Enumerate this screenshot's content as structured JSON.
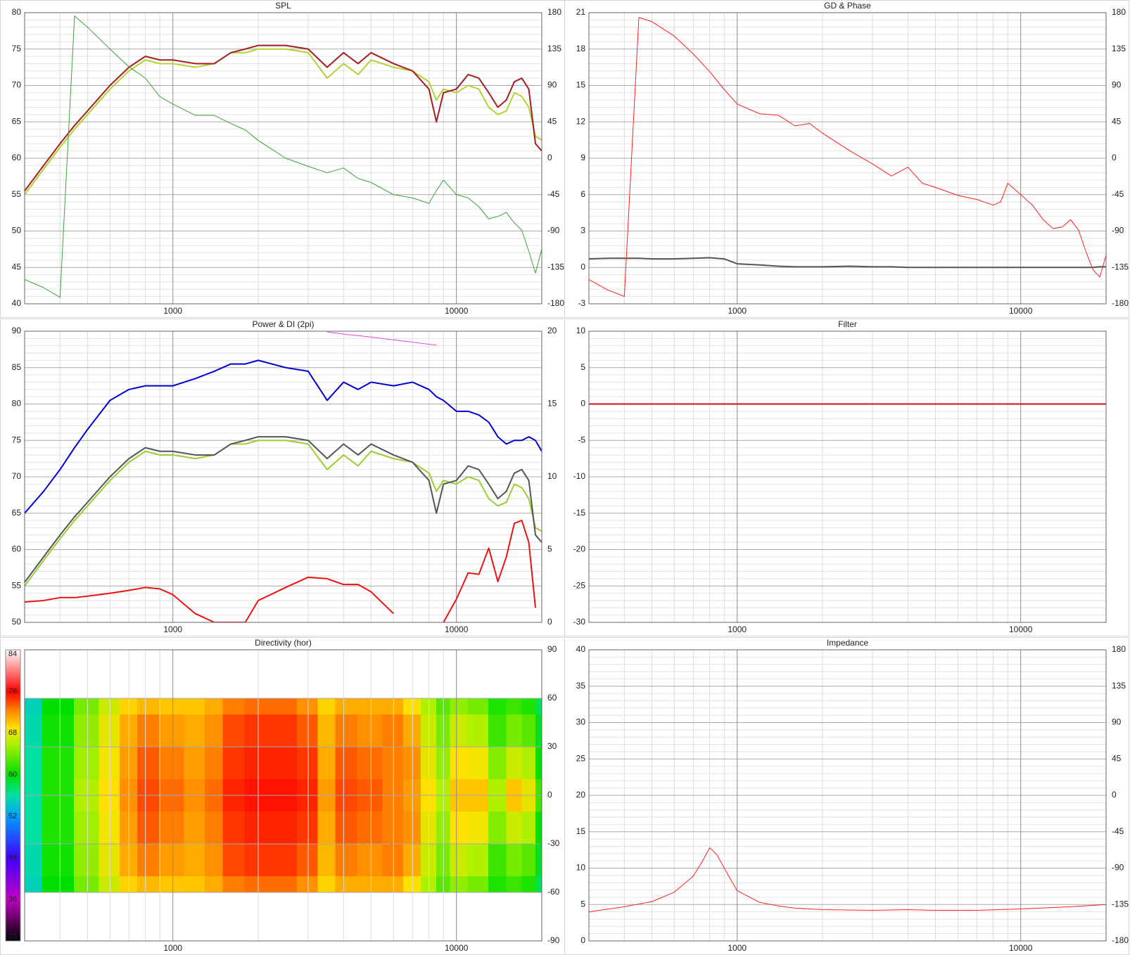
{
  "chart_data": [
    {
      "type": "line",
      "title": "SPL",
      "xscale": "log",
      "grid": true,
      "minor_grid": true,
      "x": [
        300,
        350,
        400,
        450,
        500,
        600,
        700,
        800,
        900,
        1000,
        1200,
        1400,
        1600,
        1800,
        2000,
        2500,
        3000,
        3500,
        4000,
        4500,
        5000,
        6000,
        7000,
        8000,
        8500,
        9000,
        10000,
        11000,
        12000,
        13000,
        14000,
        15000,
        16000,
        17000,
        18000,
        19000,
        20000
      ],
      "xlim": [
        300,
        20000
      ],
      "xticks": [
        1000,
        10000
      ],
      "ylim": [
        40,
        80
      ],
      "yticks": [
        40,
        45,
        50,
        55,
        60,
        65,
        70,
        75,
        80
      ],
      "y2lim": [
        -180,
        180
      ],
      "y2ticks": [
        -180,
        -135,
        -90,
        -45,
        0,
        45,
        90,
        135,
        180
      ],
      "series": [
        {
          "color": "#b3d233",
          "width": 2,
          "values": [
            55,
            58.5,
            61.5,
            64,
            66,
            69.5,
            72,
            73.5,
            73,
            73,
            72.5,
            73,
            74.5,
            74.5,
            75,
            75,
            74.5,
            71,
            73,
            71.5,
            73.5,
            72.5,
            72,
            70.5,
            68,
            69.5,
            69,
            70,
            69.5,
            67,
            66,
            66.5,
            69,
            68.5,
            67,
            63,
            62.5
          ]
        },
        {
          "color": "#a31f1f",
          "width": 2,
          "values": [
            55.5,
            59,
            62,
            64.5,
            66.5,
            70,
            72.5,
            74,
            73.5,
            73.5,
            73,
            73,
            74.5,
            75,
            75.5,
            75.5,
            75,
            72.5,
            74.5,
            73,
            74.5,
            73,
            72,
            69.5,
            65,
            69,
            69.5,
            71.5,
            71,
            69,
            67,
            68,
            70.5,
            71,
            69.5,
            62,
            61
          ]
        },
        {
          "color": "#3aa33a",
          "width": 1,
          "axis": "y2",
          "values": [
            -150,
            -160,
            -172,
            176,
            162,
            135,
            113,
            99,
            76,
            67,
            53,
            53,
            43,
            35,
            22,
            0,
            -10,
            -18,
            -12,
            -25,
            -30,
            -45,
            -49,
            -56,
            -40,
            -27,
            -45,
            -49,
            -60,
            -75,
            -72,
            -67,
            -80,
            -89,
            -115,
            -142,
            -112
          ]
        }
      ]
    },
    {
      "type": "line",
      "title": "GD & Phase",
      "xscale": "log",
      "grid": true,
      "minor_grid": true,
      "x": [
        300,
        350,
        400,
        450,
        500,
        600,
        700,
        800,
        900,
        1000,
        1200,
        1400,
        1600,
        1800,
        2000,
        2500,
        3000,
        3500,
        4000,
        4500,
        5000,
        6000,
        7000,
        8000,
        8500,
        9000,
        10000,
        11000,
        12000,
        13000,
        14000,
        15000,
        16000,
        17000,
        18000,
        19000,
        20000
      ],
      "xlim": [
        300,
        20000
      ],
      "xticks": [
        1000,
        10000
      ],
      "ylim": [
        -3,
        21
      ],
      "yticks": [
        -3,
        0,
        3,
        6,
        9,
        12,
        15,
        18,
        21
      ],
      "y2lim": [
        -180,
        180
      ],
      "y2ticks": [
        -180,
        -135,
        -90,
        -45,
        0,
        45,
        90,
        135,
        180
      ],
      "series": [
        {
          "color": "#555555",
          "width": 2,
          "values": [
            0.7,
            0.75,
            0.75,
            0.75,
            0.7,
            0.7,
            0.75,
            0.8,
            0.7,
            0.3,
            0.2,
            0.1,
            0.05,
            0.05,
            0.05,
            0.1,
            0.05,
            0.05,
            0,
            0,
            0,
            0,
            0,
            0,
            0,
            0,
            0,
            0,
            0,
            0,
            0,
            0,
            0,
            0,
            0,
            0.05,
            0.05
          ]
        },
        {
          "color": "#ff2020",
          "width": 1,
          "axis": "y2",
          "values": [
            -150,
            -163,
            -171,
            174,
            169,
            151,
            129,
            107,
            85,
            67,
            55,
            53,
            40,
            43,
            31,
            9,
            -7,
            -22,
            -11,
            -31,
            -36,
            -46,
            -51,
            -58,
            -54,
            -31,
            -45,
            -58,
            -76,
            -87,
            -85,
            -76,
            -89,
            -116,
            -138,
            -147,
            -120
          ]
        }
      ]
    },
    {
      "type": "line",
      "title": "Power & DI (2pi)",
      "xscale": "log",
      "grid": true,
      "minor_grid": true,
      "x": [
        300,
        350,
        400,
        450,
        500,
        600,
        700,
        800,
        900,
        1000,
        1200,
        1400,
        1600,
        1800,
        2000,
        2500,
        3000,
        3500,
        4000,
        4500,
        5000,
        6000,
        7000,
        8000,
        8500,
        9000,
        10000,
        11000,
        12000,
        13000,
        14000,
        15000,
        16000,
        17000,
        18000,
        19000,
        20000
      ],
      "xlim": [
        300,
        20000
      ],
      "xticks": [
        1000,
        10000
      ],
      "ylim": [
        50,
        90
      ],
      "yticks": [
        50,
        55,
        60,
        65,
        70,
        75,
        80,
        85,
        90
      ],
      "y2lim": [
        0,
        20
      ],
      "y2ticks": [
        0,
        5,
        10,
        15,
        20
      ],
      "series": [
        {
          "color": "#0000d0",
          "width": 2,
          "values": [
            65,
            68,
            71,
            74,
            76.5,
            80.5,
            82,
            82.5,
            82.5,
            82.5,
            83.5,
            84.5,
            85.5,
            85.5,
            86,
            85,
            84.5,
            80.5,
            83,
            82,
            83,
            82.5,
            83,
            82,
            81,
            80.5,
            79,
            79,
            78.5,
            77.5,
            75.5,
            74.5,
            75,
            75,
            75.5,
            75,
            73.5
          ]
        },
        {
          "color": "#9acd32",
          "width": 2,
          "values": [
            55,
            58.5,
            61.5,
            64,
            66,
            69.5,
            72,
            73.5,
            73,
            73,
            72.5,
            73,
            74.5,
            74.5,
            75,
            75,
            74.5,
            71,
            73,
            71.5,
            73.5,
            72.5,
            72,
            70.5,
            68,
            69.5,
            69,
            70,
            69.5,
            67,
            66,
            66.5,
            69,
            68.5,
            67,
            63,
            62.5
          ]
        },
        {
          "color": "#555555",
          "width": 2,
          "values": [
            55.5,
            59,
            62,
            64.5,
            66.5,
            70,
            72.5,
            74,
            73.5,
            73.5,
            73,
            73,
            74.5,
            75,
            75.5,
            75.5,
            75,
            72.5,
            74.5,
            73,
            74.5,
            73,
            72,
            69.5,
            65,
            69,
            69.5,
            71.5,
            71,
            69,
            67,
            68,
            70.5,
            71,
            69.5,
            62,
            61
          ]
        },
        {
          "color": "#ee1111",
          "width": 2,
          "axis": "y2",
          "values": [
            1.4,
            1.5,
            1.7,
            1.7,
            1.8,
            2.0,
            2.2,
            2.4,
            2.3,
            1.9,
            0.6,
            0,
            0,
            0,
            1.5,
            2.4,
            3.1,
            3.0,
            2.6,
            2.6,
            2.1,
            0.6,
            null,
            null,
            null,
            0,
            1.6,
            3.4,
            3.3,
            5.1,
            2.8,
            4.5,
            6.8,
            7.0,
            5.5,
            1.0,
            null
          ]
        },
        {
          "color": "#ee44ee",
          "width": 1,
          "axis": "y2",
          "values": [
            null,
            null,
            null,
            null,
            null,
            null,
            null,
            null,
            null,
            null,
            null,
            null,
            null,
            null,
            null,
            null,
            null,
            19.95,
            19.8,
            19.7,
            19.6,
            19.4,
            19.25,
            19.1,
            19.05,
            null,
            null,
            null,
            null,
            null,
            null,
            null,
            null,
            null,
            null,
            null,
            null
          ]
        }
      ]
    },
    {
      "type": "line",
      "title": "Filter",
      "xscale": "log",
      "grid": true,
      "minor_grid": true,
      "x": [
        300,
        20000
      ],
      "xlim": [
        300,
        20000
      ],
      "xticks": [
        1000,
        10000
      ],
      "ylim": [
        -30,
        10
      ],
      "yticks": [
        -30,
        -25,
        -20,
        -15,
        -10,
        -5,
        0,
        5,
        10
      ],
      "series": [
        {
          "color": "#cc1111",
          "width": 2,
          "values": [
            0,
            0
          ]
        }
      ]
    },
    {
      "type": "heatmap",
      "title": "Directivity (hor)",
      "xscale": "log",
      "grid": true,
      "minor_grid": true,
      "x": [
        300,
        400,
        500,
        600,
        700,
        800,
        1000,
        1200,
        1400,
        1600,
        2000,
        2500,
        3000,
        3500,
        4000,
        5000,
        6000,
        7000,
        8000,
        9000,
        10000,
        12000,
        14000,
        16000,
        18000,
        20000
      ],
      "xlim": [
        300,
        20000
      ],
      "xticks": [
        1000,
        10000
      ],
      "y": [
        60,
        40,
        20,
        0,
        -20,
        -40,
        -60
      ],
      "y2lim": [
        -90,
        90
      ],
      "y2ticks": [
        -90,
        -60,
        -30,
        0,
        30,
        60,
        90
      ],
      "zlim": [
        28,
        84
      ],
      "zticks": [
        28,
        36,
        44,
        52,
        60,
        68,
        76,
        84
      ],
      "colorscale": [
        [
          28,
          "#000000"
        ],
        [
          36,
          "#c000c0"
        ],
        [
          44,
          "#4000ff"
        ],
        [
          52,
          "#00a0ff"
        ],
        [
          56,
          "#00e0a0"
        ],
        [
          60,
          "#00e000"
        ],
        [
          66,
          "#b0f000"
        ],
        [
          69,
          "#ffe000"
        ],
        [
          72,
          "#ff9000"
        ],
        [
          76,
          "#ff0000"
        ],
        [
          84,
          "#ffffff"
        ]
      ],
      "z": [
        [
          55,
          60,
          64,
          67,
          69.5,
          70.5,
          70,
          70,
          71,
          72.5,
          73,
          73,
          72,
          69.5,
          71,
          71,
          71,
          69,
          66,
          63,
          65,
          64,
          61,
          62,
          61,
          58
        ],
        [
          55.5,
          60.5,
          65,
          68,
          71,
          72.5,
          71.5,
          71,
          72,
          74,
          74.5,
          74.5,
          73.5,
          70.5,
          72.5,
          72,
          72.5,
          71,
          67,
          64,
          67,
          66,
          62,
          64,
          63,
          59
        ],
        [
          56,
          61,
          65.5,
          68.5,
          71.5,
          73.5,
          72.5,
          71.5,
          72.5,
          74.5,
          75,
          75,
          74.5,
          71,
          73.5,
          73,
          72.5,
          72,
          68,
          65,
          69,
          68.5,
          64.5,
          67,
          66,
          60
        ],
        [
          56,
          61,
          66,
          69,
          72,
          74,
          73,
          72,
          73,
          75,
          75.5,
          75.5,
          75,
          71.5,
          74,
          73.5,
          72.5,
          71.5,
          69,
          66,
          70,
          70,
          66,
          70,
          68,
          62
        ],
        [
          56,
          61,
          65.5,
          68.5,
          71.5,
          73.5,
          72.5,
          71.5,
          72.5,
          74.5,
          75,
          75,
          74.5,
          71,
          73.5,
          73,
          72.5,
          72,
          68,
          65,
          69,
          68.5,
          64.5,
          67,
          66,
          60
        ],
        [
          55.5,
          60.5,
          65,
          68,
          71,
          72.5,
          71.5,
          71,
          72,
          74,
          74.5,
          74.5,
          73.5,
          70.5,
          72.5,
          72,
          72.5,
          71,
          67,
          64,
          67,
          66,
          62,
          64,
          63,
          59
        ],
        [
          55,
          60,
          64,
          67,
          69.5,
          70.5,
          70,
          70,
          71,
          72.5,
          73,
          73,
          72,
          69.5,
          71,
          71,
          71,
          69,
          66,
          63,
          65,
          64,
          61,
          62,
          61,
          58
        ]
      ]
    },
    {
      "type": "line",
      "title": "Impedance",
      "xscale": "log",
      "grid": true,
      "minor_grid": true,
      "x": [
        300,
        400,
        500,
        600,
        700,
        750,
        800,
        850,
        900,
        1000,
        1200,
        1400,
        1600,
        2000,
        3000,
        4000,
        5000,
        7000,
        10000,
        15000,
        20000
      ],
      "xlim": [
        300,
        20000
      ],
      "xticks": [
        1000,
        10000
      ],
      "ylim": [
        0,
        40
      ],
      "yticks": [
        0,
        5,
        10,
        15,
        20,
        25,
        30,
        35,
        40
      ],
      "y2lim": [
        -180,
        180
      ],
      "y2ticks": [
        -180,
        -135,
        -90,
        -45,
        0,
        45,
        90,
        135,
        180
      ],
      "series": [
        {
          "color": "#ff2020",
          "width": 1,
          "values": [
            4,
            4.7,
            5.4,
            6.7,
            8.9,
            10.8,
            12.8,
            11.8,
            10,
            6.9,
            5.3,
            4.8,
            4.5,
            4.3,
            4.2,
            4.3,
            4.2,
            4.2,
            4.4,
            4.7,
            5
          ]
        }
      ]
    }
  ]
}
